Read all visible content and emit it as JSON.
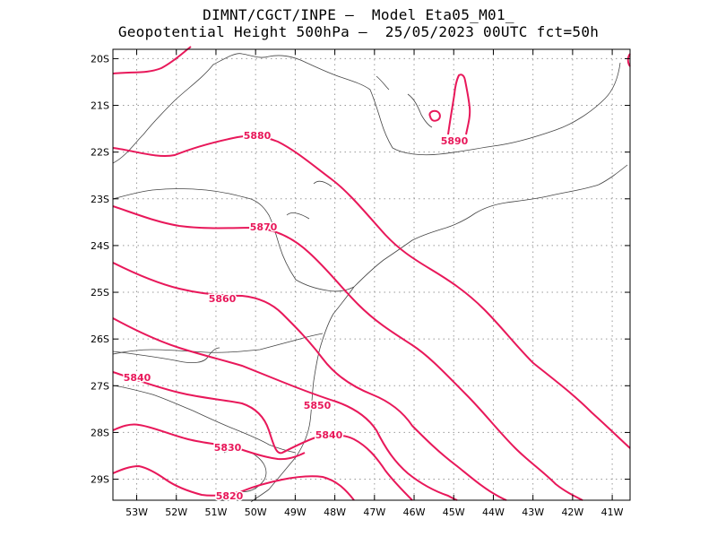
{
  "header": {
    "line1": "DIMNT/CGCT/INPE –  Model Eta05_M01_",
    "line2": "Geopotential Height 500hPa –  25/05/2023 00UTC fct=50h"
  },
  "map": {
    "lon_range": [
      -53.6,
      -40.55
    ],
    "lat_range": [
      -29.45,
      -19.8
    ],
    "grid": "dotted",
    "contour_color": "#e8185a",
    "lat_labels": [
      "20S",
      "21S",
      "22S",
      "23S",
      "24S",
      "25S",
      "26S",
      "27S",
      "28S",
      "29S"
    ],
    "lon_labels": [
      "53W",
      "52W",
      "51W",
      "50W",
      "49W",
      "48W",
      "47W",
      "46W",
      "45W",
      "44W",
      "43W",
      "42W",
      "41W"
    ]
  },
  "contours": [
    {
      "value": "5880",
      "label": "5880"
    },
    {
      "value": "5890",
      "label": "5890"
    },
    {
      "value": "5870",
      "label": "5870"
    },
    {
      "value": "5860",
      "label": "5860"
    },
    {
      "value": "5850",
      "label": "5850"
    },
    {
      "value": "5840",
      "label": "5840"
    },
    {
      "value": "5840",
      "label": "5840"
    },
    {
      "value": "5830",
      "label": "5830"
    },
    {
      "value": "5820",
      "label": "5820"
    }
  ]
}
